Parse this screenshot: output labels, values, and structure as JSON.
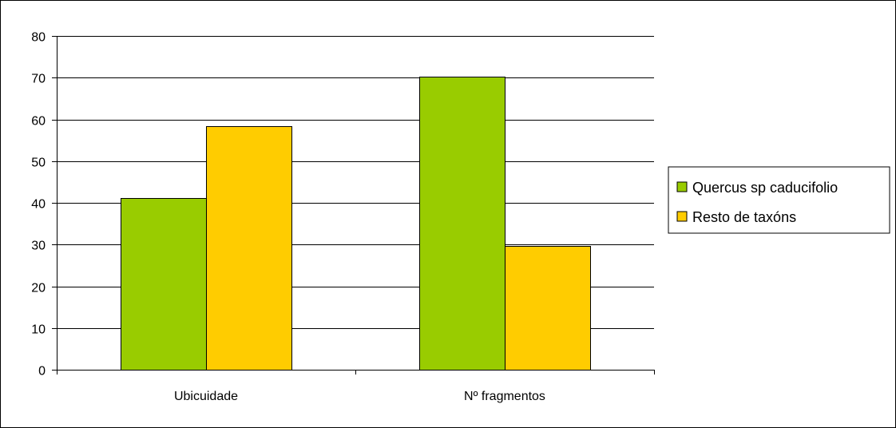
{
  "chart_data": {
    "type": "bar",
    "categories": [
      "Ubicuidade",
      "Nº fragmentos"
    ],
    "series": [
      {
        "name": "Quercus sp caducifolio",
        "values": [
          41.2,
          70.2
        ],
        "color": "#99CC00"
      },
      {
        "name": "Resto de taxóns",
        "values": [
          58.3,
          29.7
        ],
        "color": "#FFCC00"
      }
    ],
    "ylim": [
      0,
      80
    ],
    "yticks": [
      0,
      10,
      20,
      30,
      40,
      50,
      60,
      70,
      80
    ],
    "grid": true,
    "legend_position": "right",
    "title": "",
    "xlabel": "",
    "ylabel": ""
  }
}
